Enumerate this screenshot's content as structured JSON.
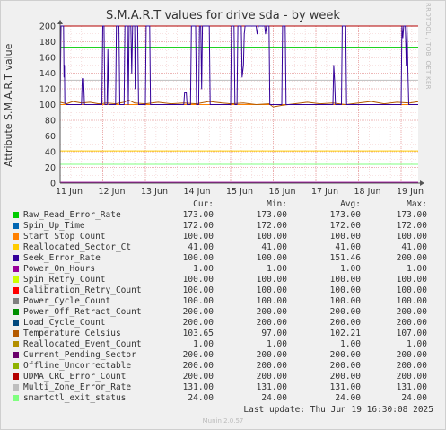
{
  "title": "S.M.A.R.T values for drive sda - by week",
  "ylabel": "Attribute S.M.A.R.T value",
  "watermark": "RRDTOOL / TOBI OETIKER",
  "footer": "Munin 2.0.57",
  "last_update": "Last update: Thu Jun 19 16:30:08 2025",
  "legend_headers": [
    "Cur:",
    "Min:",
    "Avg:",
    "Max:"
  ],
  "legend": [
    {
      "name": "Raw_Read_Error_Rate",
      "color": "#00cc00",
      "cur": "173.00",
      "min": "173.00",
      "avg": "173.00",
      "max": "173.00"
    },
    {
      "name": "Spin_Up_Time",
      "color": "#0066b3",
      "cur": "172.00",
      "min": "172.00",
      "avg": "172.00",
      "max": "172.00"
    },
    {
      "name": "Start_Stop_Count",
      "color": "#ff8000",
      "cur": "100.00",
      "min": "100.00",
      "avg": "100.00",
      "max": "100.00"
    },
    {
      "name": "Reallocated_Sector_Ct",
      "color": "#ffcc00",
      "cur": "41.00",
      "min": "41.00",
      "avg": "41.00",
      "max": "41.00"
    },
    {
      "name": "Seek_Error_Rate",
      "color": "#330099",
      "cur": "100.00",
      "min": "100.00",
      "avg": "151.46",
      "max": "200.00"
    },
    {
      "name": "Power_On_Hours",
      "color": "#990099",
      "cur": "1.00",
      "min": "1.00",
      "avg": "1.00",
      "max": "1.00"
    },
    {
      "name": "Spin_Retry_Count",
      "color": "#ccff00",
      "cur": "100.00",
      "min": "100.00",
      "avg": "100.00",
      "max": "100.00"
    },
    {
      "name": "Calibration_Retry_Count",
      "color": "#ff0000",
      "cur": "100.00",
      "min": "100.00",
      "avg": "100.00",
      "max": "100.00"
    },
    {
      "name": "Power_Cycle_Count",
      "color": "#808080",
      "cur": "100.00",
      "min": "100.00",
      "avg": "100.00",
      "max": "100.00"
    },
    {
      "name": "Power_Off_Retract_Count",
      "color": "#008f00",
      "cur": "200.00",
      "min": "200.00",
      "avg": "200.00",
      "max": "200.00"
    },
    {
      "name": "Load_Cycle_Count",
      "color": "#00487d",
      "cur": "200.00",
      "min": "200.00",
      "avg": "200.00",
      "max": "200.00"
    },
    {
      "name": "Temperature_Celsius",
      "color": "#b35a00",
      "cur": "103.65",
      "min": "97.00",
      "avg": "102.21",
      "max": "107.00"
    },
    {
      "name": "Reallocated_Event_Count",
      "color": "#b38f00",
      "cur": "1.00",
      "min": "1.00",
      "avg": "1.00",
      "max": "1.00"
    },
    {
      "name": "Current_Pending_Sector",
      "color": "#6b006b",
      "cur": "200.00",
      "min": "200.00",
      "avg": "200.00",
      "max": "200.00"
    },
    {
      "name": "Offline_Uncorrectable",
      "color": "#8fb300",
      "cur": "200.00",
      "min": "200.00",
      "avg": "200.00",
      "max": "200.00"
    },
    {
      "name": "UDMA_CRC_Error_Count",
      "color": "#b30000",
      "cur": "200.00",
      "min": "200.00",
      "avg": "200.00",
      "max": "200.00"
    },
    {
      "name": "Multi_Zone_Error_Rate",
      "color": "#bebebe",
      "cur": "131.00",
      "min": "131.00",
      "avg": "131.00",
      "max": "131.00"
    },
    {
      "name": "smartctl_exit_status",
      "color": "#80ff80",
      "cur": "24.00",
      "min": "24.00",
      "avg": "24.00",
      "max": "24.00"
    }
  ],
  "chart_data": {
    "type": "line",
    "ylim": [
      0,
      200
    ],
    "xlim": [
      0,
      8.4
    ],
    "y_ticks": [
      0,
      20,
      40,
      60,
      80,
      100,
      120,
      140,
      160,
      180,
      200
    ],
    "x_ticks": [
      {
        "x": 0,
        "label": "11 Jun"
      },
      {
        "x": 1,
        "label": "12 Jun"
      },
      {
        "x": 2,
        "label": "13 Jun"
      },
      {
        "x": 3,
        "label": "14 Jun"
      },
      {
        "x": 4,
        "label": "15 Jun"
      },
      {
        "x": 5,
        "label": "16 Jun"
      },
      {
        "x": 6,
        "label": "17 Jun"
      },
      {
        "x": 7,
        "label": "18 Jun"
      },
      {
        "x": 8,
        "label": "19 Jun"
      }
    ],
    "grid": true,
    "constant_series": [
      {
        "name": "Raw_Read_Error_Rate",
        "color": "#00cc00",
        "value": 173
      },
      {
        "name": "Spin_Up_Time",
        "color": "#0066b3",
        "value": 172
      },
      {
        "name": "Multi_Zone_Error_Rate",
        "color": "#bebebe",
        "value": 131
      },
      {
        "name": "Power_Off_Retract_Count",
        "color": "#008f00",
        "value": 200
      },
      {
        "name": "UDMA_CRC_Error_Count",
        "color": "#b30000",
        "value": 200
      },
      {
        "name": "Start_Stop_Count",
        "color": "#ff8000",
        "value": 100
      },
      {
        "name": "Reallocated_Sector_Ct",
        "color": "#ffcc00",
        "value": 41
      },
      {
        "name": "smartctl_exit_status",
        "color": "#80ff80",
        "value": 24
      },
      {
        "name": "Power_On_Hours",
        "color": "#990099",
        "value": 1
      }
    ],
    "temperature_series": {
      "name": "Temperature_Celsius",
      "color": "#b35a00",
      "points": [
        [
          0,
          103
        ],
        [
          0.15,
          101
        ],
        [
          0.3,
          104
        ],
        [
          0.5,
          102
        ],
        [
          0.7,
          103
        ],
        [
          0.9,
          101
        ],
        [
          1.1,
          102
        ],
        [
          1.3,
          101
        ],
        [
          1.5,
          103
        ],
        [
          1.6,
          106
        ],
        [
          1.75,
          102
        ],
        [
          2.0,
          101
        ],
        [
          2.3,
          103
        ],
        [
          2.6,
          101
        ],
        [
          2.9,
          102
        ],
        [
          3.2,
          101
        ],
        [
          3.5,
          104
        ],
        [
          3.8,
          102
        ],
        [
          4.0,
          101
        ],
        [
          4.3,
          102
        ],
        [
          4.6,
          100
        ],
        [
          4.9,
          101
        ],
        [
          5.0,
          97
        ],
        [
          5.2,
          99
        ],
        [
          5.5,
          101
        ],
        [
          5.8,
          103
        ],
        [
          6.1,
          101
        ],
        [
          6.4,
          102
        ],
        [
          6.7,
          100
        ],
        [
          7.0,
          102
        ],
        [
          7.3,
          104
        ],
        [
          7.6,
          101
        ],
        [
          7.9,
          103
        ],
        [
          8.2,
          102
        ],
        [
          8.4,
          103.65
        ]
      ]
    },
    "seek_error_series": {
      "name": "Seek_Error_Rate",
      "color": "#330099",
      "points": [
        [
          0,
          100
        ],
        [
          0.02,
          200
        ],
        [
          0.08,
          200
        ],
        [
          0.09,
          135
        ],
        [
          0.1,
          150
        ],
        [
          0.11,
          102
        ],
        [
          0.15,
          100
        ],
        [
          0.5,
          100
        ],
        [
          0.52,
          133
        ],
        [
          0.55,
          133
        ],
        [
          0.57,
          100
        ],
        [
          0.98,
          100
        ],
        [
          1.0,
          200
        ],
        [
          1.03,
          200
        ],
        [
          1.05,
          100
        ],
        [
          1.1,
          100
        ],
        [
          1.12,
          170
        ],
        [
          1.14,
          100
        ],
        [
          1.3,
          100
        ],
        [
          1.32,
          200
        ],
        [
          1.38,
          200
        ],
        [
          1.4,
          100
        ],
        [
          1.5,
          100
        ],
        [
          1.52,
          200
        ],
        [
          1.58,
          200
        ],
        [
          1.6,
          100
        ],
        [
          1.62,
          200
        ],
        [
          1.66,
          200
        ],
        [
          1.68,
          140
        ],
        [
          1.7,
          200
        ],
        [
          1.75,
          200
        ],
        [
          1.76,
          120
        ],
        [
          1.78,
          200
        ],
        [
          1.82,
          200
        ],
        [
          1.84,
          100
        ],
        [
          2.0,
          100
        ],
        [
          2.02,
          200
        ],
        [
          2.1,
          200
        ],
        [
          2.12,
          100
        ],
        [
          2.9,
          100
        ],
        [
          2.92,
          115
        ],
        [
          2.96,
          115
        ],
        [
          2.98,
          100
        ],
        [
          3.06,
          100
        ],
        [
          3.08,
          200
        ],
        [
          3.18,
          200
        ],
        [
          3.2,
          100
        ],
        [
          3.25,
          100
        ],
        [
          3.27,
          200
        ],
        [
          3.3,
          200
        ],
        [
          3.32,
          120
        ],
        [
          3.34,
          200
        ],
        [
          3.5,
          200
        ],
        [
          3.52,
          100
        ],
        [
          4.0,
          100
        ],
        [
          4.02,
          200
        ],
        [
          4.08,
          200
        ],
        [
          4.1,
          100
        ],
        [
          4.15,
          100
        ],
        [
          4.17,
          200
        ],
        [
          4.25,
          200
        ],
        [
          4.27,
          135
        ],
        [
          4.3,
          150
        ],
        [
          4.32,
          190
        ],
        [
          4.34,
          200
        ],
        [
          4.6,
          200
        ],
        [
          4.62,
          190
        ],
        [
          4.65,
          200
        ],
        [
          4.8,
          200
        ],
        [
          4.82,
          190
        ],
        [
          4.84,
          200
        ],
        [
          4.9,
          200
        ],
        [
          4.92,
          100
        ],
        [
          5.2,
          100
        ],
        [
          5.22,
          200
        ],
        [
          5.28,
          200
        ],
        [
          5.3,
          100
        ],
        [
          6.4,
          100
        ],
        [
          6.42,
          150
        ],
        [
          6.44,
          130
        ],
        [
          6.46,
          100
        ],
        [
          6.6,
          100
        ],
        [
          6.62,
          200
        ],
        [
          6.7,
          200
        ],
        [
          6.72,
          100
        ],
        [
          8.0,
          100
        ],
        [
          8.02,
          200
        ],
        [
          8.04,
          185
        ],
        [
          8.06,
          200
        ],
        [
          8.1,
          200
        ],
        [
          8.12,
          150
        ],
        [
          8.14,
          200
        ],
        [
          8.16,
          140
        ],
        [
          8.18,
          100
        ],
        [
          8.4,
          100
        ]
      ]
    }
  }
}
